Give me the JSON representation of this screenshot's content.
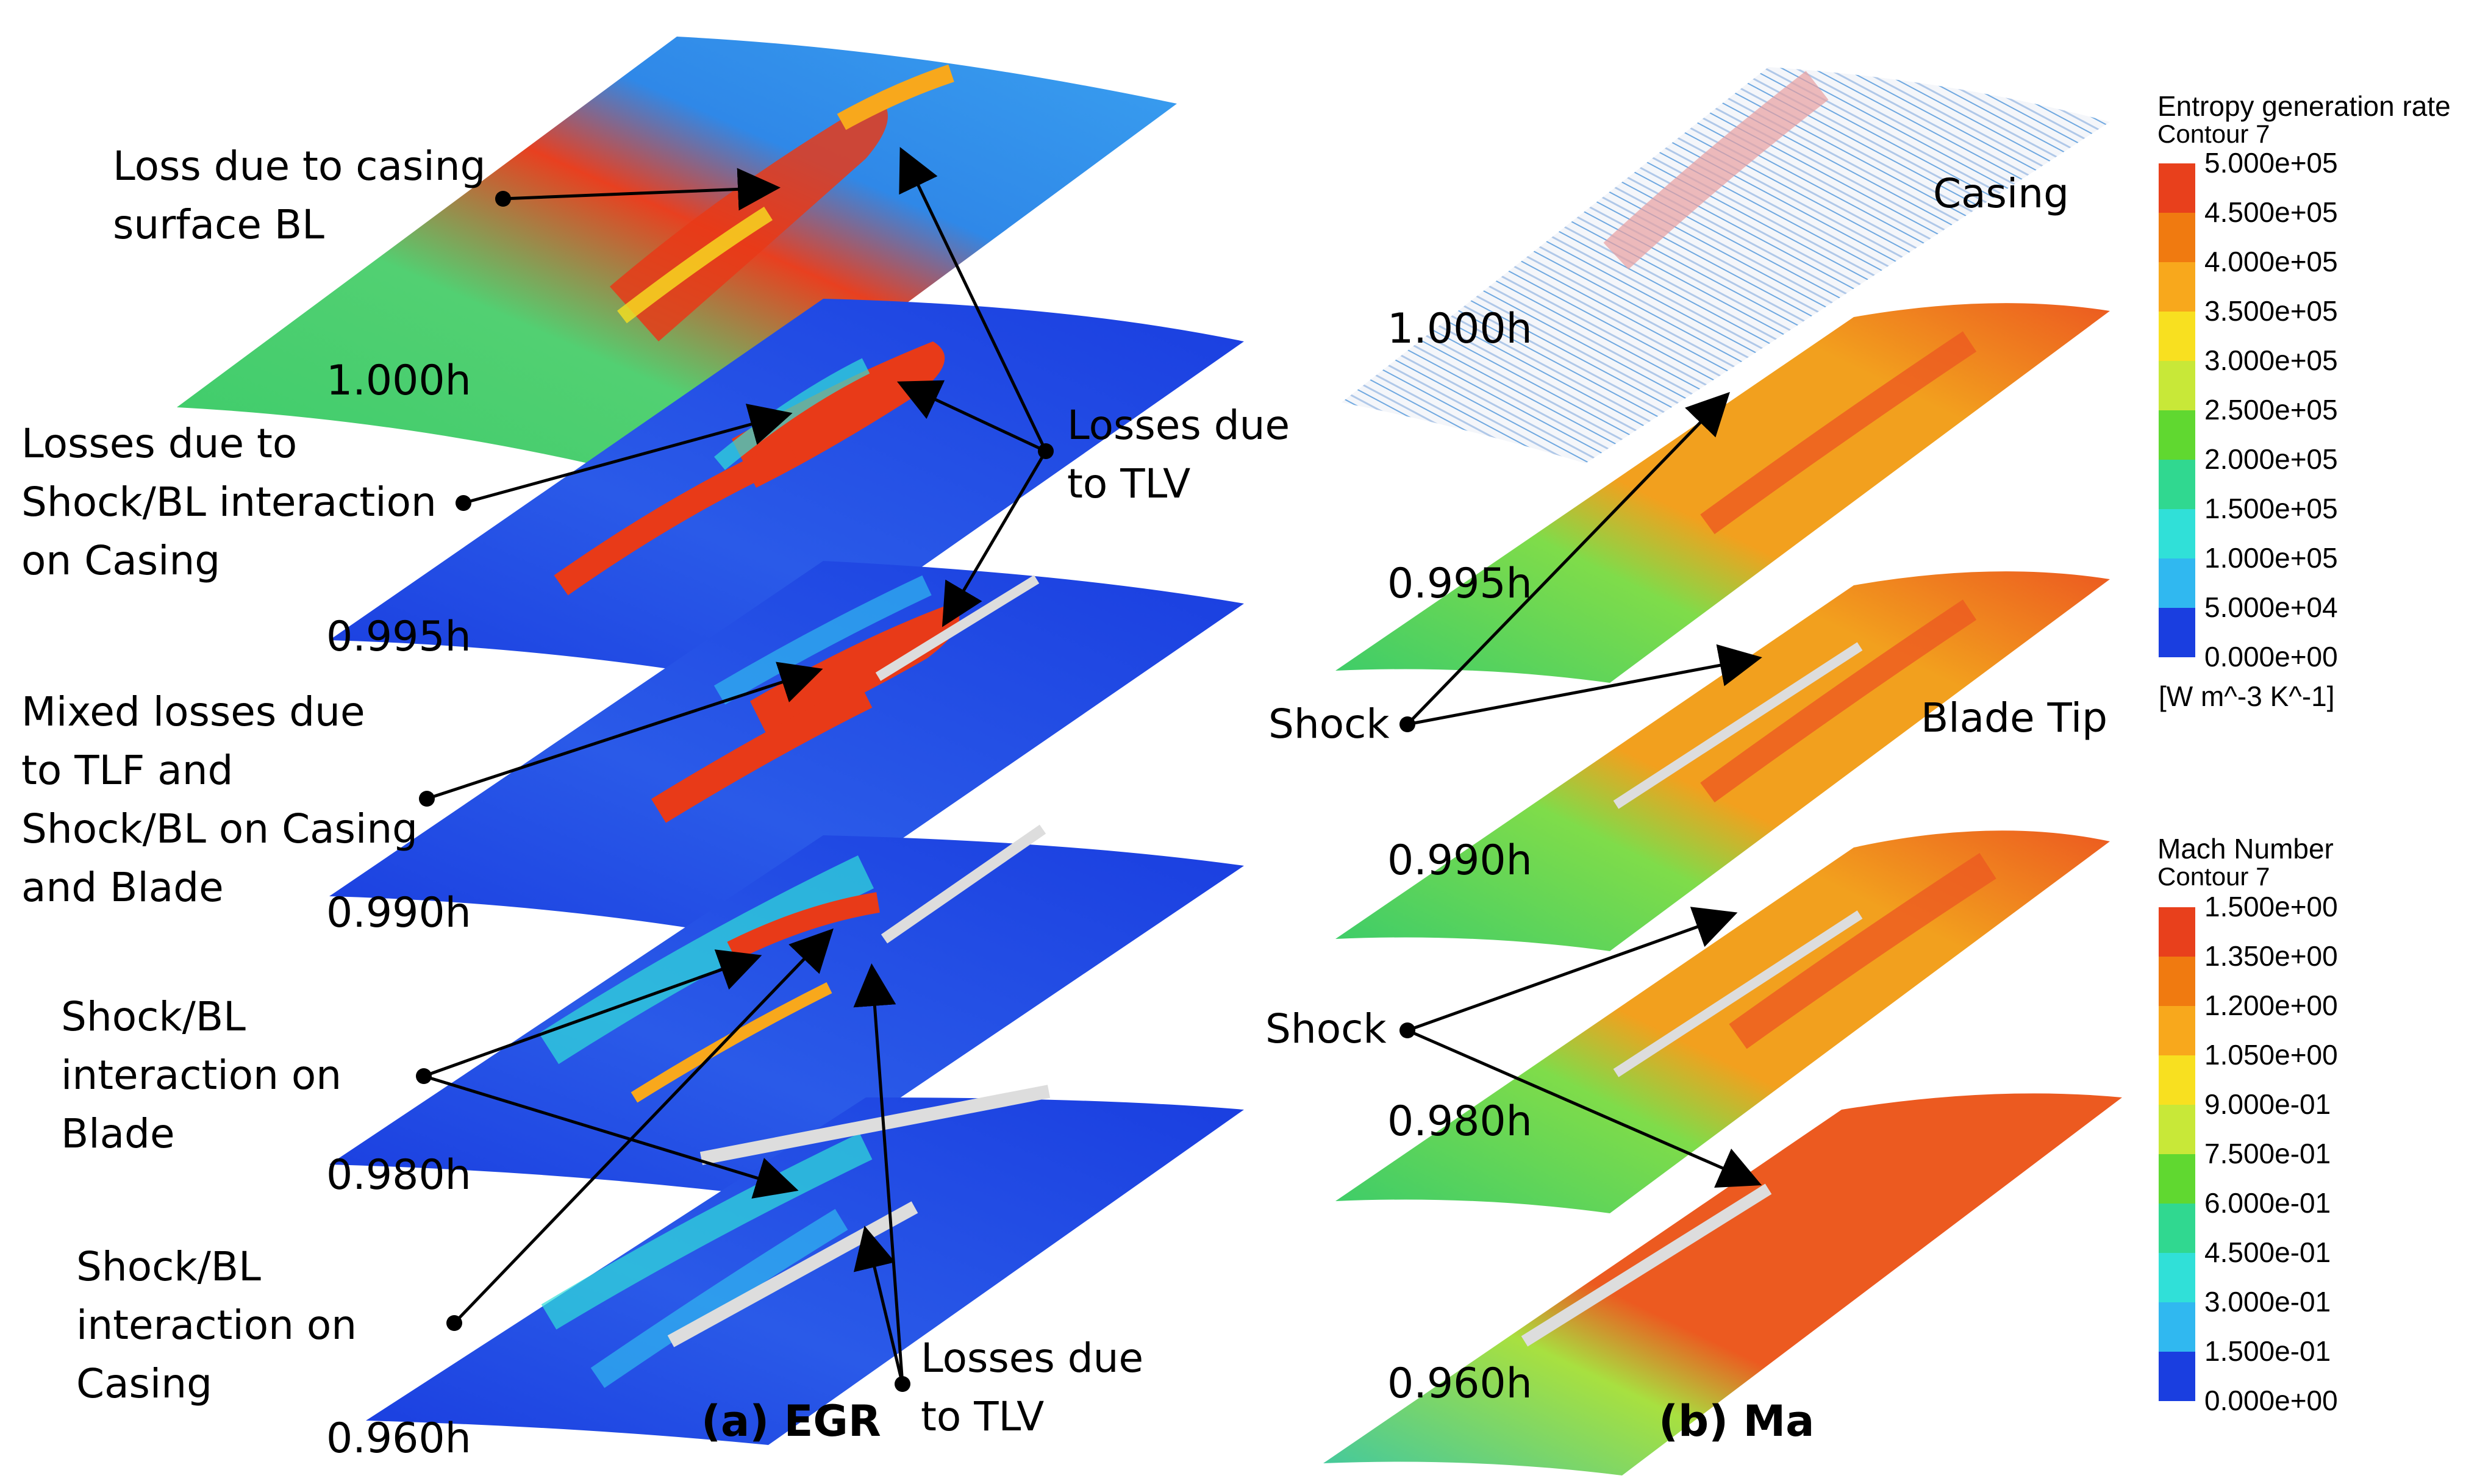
{
  "panels": {
    "a": {
      "caption": "(a) EGR",
      "levels": [
        "1.000h",
        "0.995h",
        "0.990h",
        "0.980h",
        "0.960h"
      ],
      "annotations": [
        "Loss due to casing\nsurface BL",
        "Losses due to\nShock/BL interaction\non Casing",
        "Mixed losses due\nto TLF and\nShock/BL on Casing\nand Blade",
        "Shock/BL\ninteraction on\nBlade",
        "Shock/BL\ninteraction on\nCasing",
        "Losses due\nto TLV",
        "Losses due\nto TLV"
      ]
    },
    "b": {
      "caption": "(b) Ma",
      "levels": [
        "1.000h",
        "0.995h",
        "0.990h",
        "0.980h",
        "0.960h"
      ],
      "annotations": [
        "Casing",
        "Shock",
        "Blade Tip",
        "Shock"
      ]
    }
  },
  "colorbars": [
    {
      "title": "Entropy generation rate",
      "subtitle": "Contour 7",
      "ticks": [
        "5.000e+05",
        "4.500e+05",
        "4.000e+05",
        "3.500e+05",
        "3.000e+05",
        "2.500e+05",
        "2.000e+05",
        "1.500e+05",
        "1.000e+05",
        "5.000e+04",
        "0.000e+00"
      ],
      "unit": "[W m^-3 K^-1]"
    },
    {
      "title": "Mach Number",
      "subtitle": "Contour 7",
      "ticks": [
        "1.500e+00",
        "1.350e+00",
        "1.200e+00",
        "1.050e+00",
        "9.000e-01",
        "7.500e-01",
        "6.000e-01",
        "4.500e-01",
        "3.000e-01",
        "1.500e-01",
        "0.000e+00"
      ],
      "unit": ""
    }
  ],
  "colors": {
    "scale": [
      "#e8401c",
      "#f07a10",
      "#f8a81c",
      "#f8e020",
      "#c8e838",
      "#60d830",
      "#30d890",
      "#30e0d8",
      "#30b8f0",
      "#2f88e8",
      "#1a3ee0"
    ],
    "deep_blue": "#1a3ee0",
    "green": "#3ccc6a",
    "orange": "#f2a01e",
    "red_orange": "#ec5a20"
  }
}
